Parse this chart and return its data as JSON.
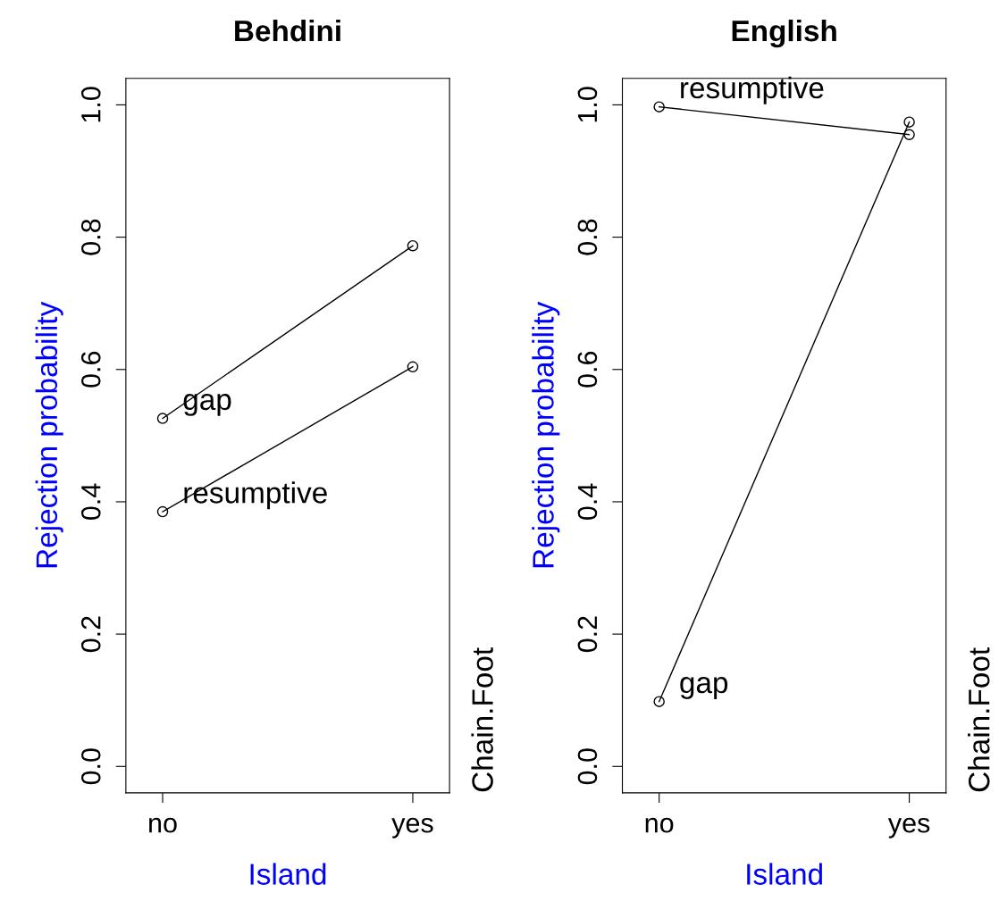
{
  "chart_data": [
    {
      "type": "line",
      "title": "Behdini",
      "xlabel": "Island",
      "ylabel": "Rejection probability",
      "legend_title": "Chain.Foot",
      "categories": [
        "no",
        "yes"
      ],
      "marker": "circle",
      "series": [
        {
          "name": "gap",
          "color": "#000000",
          "values": [
            0.526,
            0.787
          ]
        },
        {
          "name": "resumptive",
          "color": "#000000",
          "values": [
            0.385,
            0.604
          ]
        }
      ],
      "ylim": [
        -0.04,
        1.04
      ],
      "yticks": [
        {
          "value": 0,
          "label": "0.0"
        },
        {
          "value": 0.2,
          "label": "0.2"
        },
        {
          "value": 0.4,
          "label": "0.4"
        },
        {
          "value": 0.6,
          "label": "0.6"
        },
        {
          "value": 0.8,
          "label": "0.8"
        },
        {
          "value": 1,
          "label": "1.0"
        }
      ],
      "grid": false
    },
    {
      "type": "line",
      "title": "English",
      "xlabel": "Island",
      "ylabel": "Rejection probability",
      "legend_title": "Chain.Foot",
      "categories": [
        "no",
        "yes"
      ],
      "marker": "circle",
      "series": [
        {
          "name": "resumptive",
          "color": "#000000",
          "values": [
            0.997,
            0.955
          ]
        },
        {
          "name": "gap",
          "color": "#000000",
          "values": [
            0.098,
            0.974
          ]
        }
      ],
      "ylim": [
        -0.04,
        1.04
      ],
      "yticks": [
        {
          "value": 0,
          "label": "0.0"
        },
        {
          "value": 0.2,
          "label": "0.2"
        },
        {
          "value": 0.4,
          "label": "0.4"
        },
        {
          "value": 0.6,
          "label": "0.6"
        },
        {
          "value": 0.8,
          "label": "0.8"
        },
        {
          "value": 1,
          "label": "1.0"
        }
      ],
      "grid": false
    }
  ]
}
